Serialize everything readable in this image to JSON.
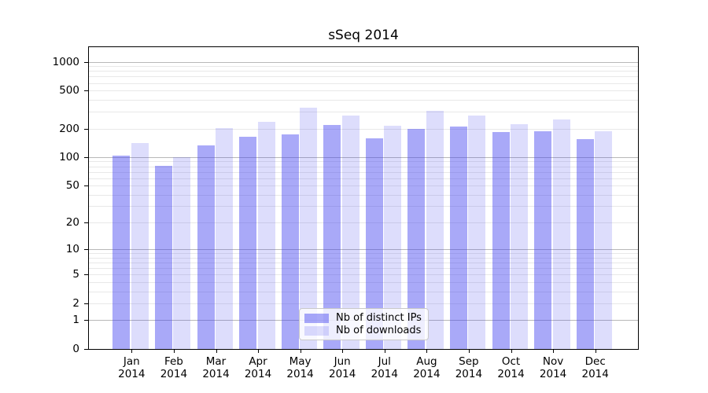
{
  "figure": {
    "title": "sSeq 2014"
  },
  "chart_data": {
    "type": "bar",
    "title": "sSeq 2014",
    "categories": [
      "Jan 2014",
      "Feb 2014",
      "Mar 2014",
      "Apr 2014",
      "May 2014",
      "Jun 2014",
      "Jul 2014",
      "Aug 2014",
      "Sep 2014",
      "Oct 2014",
      "Nov 2014",
      "Dec 2014"
    ],
    "series": [
      {
        "name": "Nb of distinct IPs",
        "values": [
          104,
          81,
          134,
          164,
          173,
          219,
          157,
          200,
          209,
          183,
          187,
          154
        ],
        "fill": "rgba(64,64,240,0.45)"
      },
      {
        "name": "Nb of downloads",
        "values": [
          141,
          100,
          202,
          237,
          330,
          273,
          213,
          309,
          275,
          224,
          247,
          187
        ],
        "fill": "rgba(64,64,240,0.18)"
      }
    ],
    "yscale": "log1p",
    "ylim": [
      0,
      1450
    ],
    "yticks": {
      "values": [
        0,
        1,
        2,
        5,
        10,
        20,
        50,
        100,
        200,
        500,
        1000
      ],
      "labels": [
        "0",
        "1",
        "2",
        "5",
        "10",
        "20",
        "50",
        "100",
        "200",
        "500",
        "1000"
      ]
    },
    "grid": {
      "major_at": [
        1,
        10,
        100,
        1000
      ],
      "minor_per_decade": [
        2,
        3,
        4,
        5,
        6,
        7,
        8,
        9
      ],
      "major_color": "#b8b8b8",
      "minor_color": "#e8e8e8"
    },
    "legend": {
      "position": "inside lower center",
      "labels": [
        "Nb of distinct IPs",
        "Nb of downloads"
      ]
    }
  }
}
